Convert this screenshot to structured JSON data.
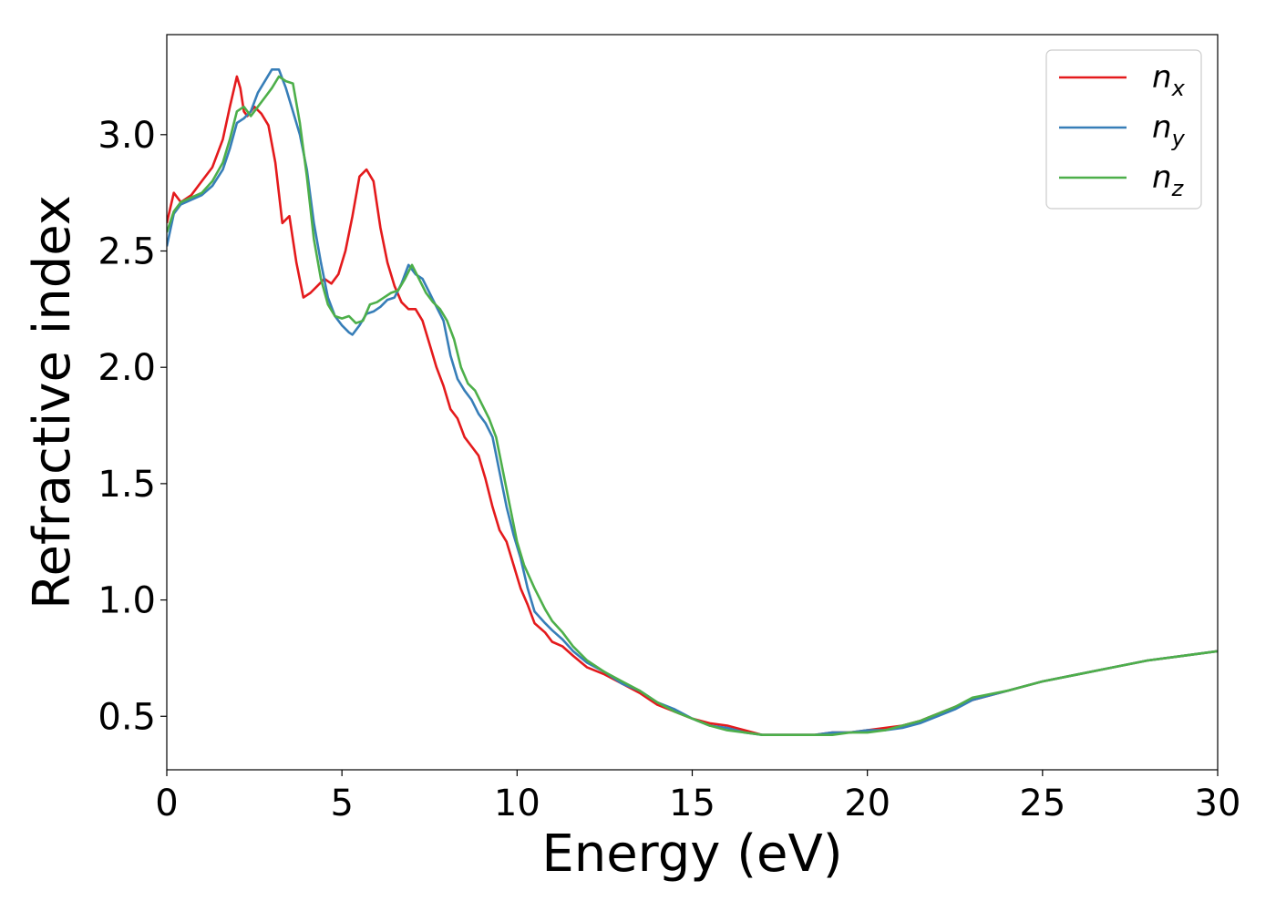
{
  "chart_data": {
    "type": "line",
    "xlabel": "Energy (eV)",
    "ylabel": "Refractive index",
    "xlim": [
      0,
      30
    ],
    "ylim": [
      0.27,
      3.43
    ],
    "xticks": [
      0,
      5,
      10,
      15,
      20,
      25,
      30
    ],
    "xtick_labels": [
      "0",
      "5",
      "10",
      "15",
      "20",
      "25",
      "30"
    ],
    "yticks": [
      0.5,
      1.0,
      1.5,
      2.0,
      2.5,
      3.0
    ],
    "ytick_labels": [
      "0.5",
      "1.0",
      "1.5",
      "2.0",
      "2.5",
      "3.0"
    ],
    "grid": false,
    "legend_position": "top-right",
    "series": [
      {
        "name_base": "n",
        "name_sub": "x",
        "color": "#e41a1c",
        "x": [
          0,
          0.2,
          0.4,
          0.7,
          1.0,
          1.3,
          1.6,
          1.8,
          2.0,
          2.1,
          2.2,
          2.3,
          2.5,
          2.7,
          2.9,
          3.1,
          3.3,
          3.5,
          3.7,
          3.9,
          4.1,
          4.3,
          4.5,
          4.7,
          4.9,
          5.1,
          5.3,
          5.5,
          5.7,
          5.9,
          6.1,
          6.3,
          6.5,
          6.7,
          6.9,
          7.1,
          7.3,
          7.5,
          7.7,
          7.9,
          8.1,
          8.3,
          8.5,
          8.7,
          8.9,
          9.1,
          9.3,
          9.5,
          9.7,
          9.9,
          10.1,
          10.3,
          10.5,
          10.8,
          11.0,
          11.3,
          11.6,
          12.0,
          12.5,
          13.0,
          13.5,
          14.0,
          14.5,
          15.0,
          15.5,
          16.0,
          16.5,
          17.0,
          17.5,
          18.0,
          18.5,
          19.0,
          19.5,
          20.0,
          20.5,
          21.0,
          21.5,
          22.0,
          22.5,
          23.0,
          24.0,
          25.0,
          26.0,
          27.0,
          28.0,
          29.0,
          30.0
        ],
        "y": [
          2.62,
          2.75,
          2.71,
          2.74,
          2.8,
          2.86,
          2.98,
          3.12,
          3.25,
          3.2,
          3.1,
          3.08,
          3.12,
          3.09,
          3.04,
          2.88,
          2.62,
          2.65,
          2.45,
          2.3,
          2.32,
          2.35,
          2.38,
          2.36,
          2.4,
          2.5,
          2.65,
          2.82,
          2.85,
          2.8,
          2.6,
          2.45,
          2.35,
          2.28,
          2.25,
          2.25,
          2.2,
          2.1,
          2.0,
          1.92,
          1.82,
          1.78,
          1.7,
          1.66,
          1.62,
          1.52,
          1.4,
          1.3,
          1.25,
          1.15,
          1.05,
          0.98,
          0.9,
          0.86,
          0.82,
          0.8,
          0.76,
          0.71,
          0.68,
          0.64,
          0.6,
          0.55,
          0.52,
          0.49,
          0.47,
          0.46,
          0.44,
          0.42,
          0.42,
          0.42,
          0.42,
          0.43,
          0.43,
          0.44,
          0.45,
          0.46,
          0.48,
          0.51,
          0.54,
          0.57,
          0.61,
          0.65,
          0.68,
          0.71,
          0.74,
          0.76,
          0.78
        ]
      },
      {
        "name_base": "n",
        "name_sub": "y",
        "color": "#377eb8",
        "x": [
          0,
          0.2,
          0.4,
          0.7,
          1.0,
          1.3,
          1.6,
          1.8,
          2.0,
          2.2,
          2.4,
          2.6,
          2.8,
          3.0,
          3.2,
          3.4,
          3.6,
          3.8,
          4.0,
          4.2,
          4.4,
          4.6,
          4.8,
          5.0,
          5.2,
          5.3,
          5.5,
          5.7,
          5.9,
          6.1,
          6.3,
          6.5,
          6.7,
          6.9,
          7.1,
          7.3,
          7.5,
          7.7,
          7.9,
          8.1,
          8.3,
          8.5,
          8.7,
          8.9,
          9.1,
          9.3,
          9.5,
          9.7,
          9.9,
          10.1,
          10.3,
          10.5,
          10.8,
          11.0,
          11.3,
          11.6,
          12.0,
          12.5,
          13.0,
          13.5,
          14.0,
          14.5,
          15.0,
          15.5,
          16.0,
          16.5,
          17.0,
          17.5,
          18.0,
          18.5,
          19.0,
          19.5,
          20.0,
          20.5,
          21.0,
          21.5,
          22.0,
          22.5,
          23.0,
          24.0,
          25.0,
          26.0,
          27.0,
          28.0,
          29.0,
          30.0
        ],
        "y": [
          2.52,
          2.66,
          2.7,
          2.72,
          2.74,
          2.78,
          2.85,
          2.94,
          3.05,
          3.07,
          3.1,
          3.18,
          3.23,
          3.28,
          3.28,
          3.2,
          3.1,
          3.0,
          2.85,
          2.62,
          2.45,
          2.3,
          2.22,
          2.18,
          2.15,
          2.14,
          2.18,
          2.23,
          2.24,
          2.26,
          2.29,
          2.3,
          2.36,
          2.44,
          2.4,
          2.38,
          2.32,
          2.26,
          2.2,
          2.05,
          1.95,
          1.9,
          1.86,
          1.8,
          1.76,
          1.7,
          1.55,
          1.4,
          1.28,
          1.18,
          1.05,
          0.95,
          0.9,
          0.87,
          0.83,
          0.78,
          0.73,
          0.69,
          0.64,
          0.61,
          0.56,
          0.53,
          0.49,
          0.46,
          0.45,
          0.43,
          0.42,
          0.42,
          0.42,
          0.42,
          0.43,
          0.43,
          0.44,
          0.44,
          0.45,
          0.47,
          0.5,
          0.53,
          0.57,
          0.61,
          0.65,
          0.68,
          0.71,
          0.74,
          0.76,
          0.78
        ]
      },
      {
        "name_base": "n",
        "name_sub": "z",
        "color": "#4daf4a",
        "x": [
          0,
          0.2,
          0.4,
          0.7,
          1.0,
          1.3,
          1.6,
          1.8,
          2.0,
          2.2,
          2.4,
          2.6,
          2.8,
          3.0,
          3.2,
          3.4,
          3.6,
          3.8,
          4.0,
          4.2,
          4.4,
          4.6,
          4.8,
          5.0,
          5.2,
          5.4,
          5.6,
          5.8,
          6.0,
          6.2,
          6.4,
          6.6,
          6.8,
          7.0,
          7.2,
          7.4,
          7.6,
          7.8,
          8.0,
          8.2,
          8.4,
          8.6,
          8.8,
          9.0,
          9.2,
          9.4,
          9.6,
          9.8,
          10.0,
          10.2,
          10.5,
          10.8,
          11.0,
          11.3,
          11.6,
          12.0,
          12.5,
          13.0,
          13.5,
          14.0,
          14.5,
          15.0,
          15.5,
          16.0,
          16.5,
          17.0,
          17.5,
          18.0,
          18.5,
          19.0,
          19.5,
          20.0,
          20.5,
          21.0,
          21.5,
          22.0,
          22.5,
          23.0,
          24.0,
          25.0,
          26.0,
          27.0,
          28.0,
          29.0,
          30.0
        ],
        "y": [
          2.58,
          2.67,
          2.71,
          2.73,
          2.75,
          2.8,
          2.88,
          2.98,
          3.1,
          3.12,
          3.08,
          3.12,
          3.16,
          3.2,
          3.25,
          3.23,
          3.22,
          3.05,
          2.82,
          2.55,
          2.38,
          2.27,
          2.22,
          2.21,
          2.22,
          2.19,
          2.2,
          2.27,
          2.28,
          2.3,
          2.32,
          2.33,
          2.38,
          2.44,
          2.38,
          2.32,
          2.28,
          2.25,
          2.2,
          2.12,
          2.0,
          1.93,
          1.9,
          1.84,
          1.78,
          1.7,
          1.55,
          1.4,
          1.25,
          1.15,
          1.05,
          0.96,
          0.91,
          0.86,
          0.8,
          0.74,
          0.69,
          0.65,
          0.61,
          0.56,
          0.52,
          0.49,
          0.46,
          0.44,
          0.43,
          0.42,
          0.42,
          0.42,
          0.42,
          0.42,
          0.43,
          0.43,
          0.44,
          0.46,
          0.48,
          0.51,
          0.54,
          0.58,
          0.61,
          0.65,
          0.68,
          0.71,
          0.74,
          0.76,
          0.78
        ]
      }
    ]
  }
}
